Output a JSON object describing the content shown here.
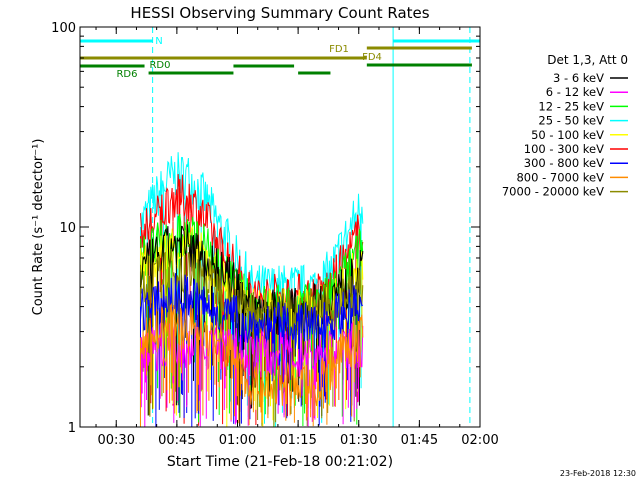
{
  "chart_data": {
    "type": "line",
    "title": "HESSI Observing Summary Count Rates",
    "xlabel": "Start Time (21-Feb-18 00:21:02)",
    "ylabel": "Count Rate (s⁻¹ detector⁻¹)",
    "x_axis": {
      "start": "00:21:02",
      "end": "02:00",
      "unit": "time",
      "ticks": [
        "00:30",
        "00:45",
        "01:00",
        "01:15",
        "01:30",
        "01:45",
        "02:00"
      ]
    },
    "y_axis": {
      "scale": "log",
      "ylim": [
        1,
        100
      ],
      "ticks": [
        "1",
        "10",
        "100"
      ]
    },
    "legend": {
      "title": "Det 1,3, Att 0",
      "position": "right",
      "entries": [
        {
          "label": "3 - 6 keV",
          "color": "#000000"
        },
        {
          "label": "6 - 12 keV",
          "color": "#ff00ff"
        },
        {
          "label": "12 - 25 keV",
          "color": "#00ff00"
        },
        {
          "label": "25 - 50 keV",
          "color": "#00ffff"
        },
        {
          "label": "50 - 100 keV",
          "color": "#ffff00"
        },
        {
          "label": "100 - 300 keV",
          "color": "#ff0000"
        },
        {
          "label": "300 - 800 keV",
          "color": "#0000ff"
        },
        {
          "label": "800 - 7000 keV",
          "color": "#ff8c00"
        },
        {
          "label": "7000 - 20000 keV",
          "color": "#8b8b00"
        }
      ]
    },
    "flags": [
      {
        "label": "N",
        "color": "#00ffff",
        "segments": [
          [
            "00:21:02",
            "00:39:00"
          ],
          [
            "01:38:30",
            "02:00"
          ]
        ]
      },
      {
        "label": "FD1",
        "color": "#8b8b00",
        "segments": [
          [
            "00:21:02",
            "01:32:00"
          ]
        ]
      },
      {
        "label": "FD4",
        "color": "#8b8b00",
        "segments": [
          [
            "01:32:00",
            "01:58:00"
          ]
        ]
      },
      {
        "label": "RD0",
        "color": "#008000",
        "segments": [
          [
            "00:21:02",
            "00:37:00"
          ],
          [
            "00:59:00",
            "01:14:00"
          ],
          [
            "01:32:00",
            "01:58:00"
          ]
        ]
      },
      {
        "label": "RD6",
        "color": "#008000",
        "segments": [
          [
            "00:38:00",
            "00:59:00"
          ],
          [
            "01:15:00",
            "01:23:00"
          ]
        ]
      }
    ],
    "night_markers": [
      {
        "time": "00:21:02",
        "style": "solid"
      },
      {
        "time": "00:39:00",
        "style": "dashed"
      },
      {
        "time": "01:38:30",
        "style": "solid"
      },
      {
        "time": "01:57:30",
        "style": "dashed"
      }
    ],
    "series": [
      {
        "name": "25 - 50 keV",
        "color": "#00ffff",
        "time_range": [
          "00:36:00",
          "01:31:00"
        ],
        "values": [
          10,
          14,
          18,
          18,
          14,
          10,
          7,
          5,
          5,
          5,
          5,
          5,
          6,
          9,
          13
        ]
      },
      {
        "name": "100 - 300 keV",
        "color": "#ff0000",
        "time_range": [
          "00:36:00",
          "01:31:00"
        ],
        "values": [
          9,
          11,
          14,
          14,
          11,
          8,
          6,
          4.5,
          4.5,
          4.5,
          4.5,
          4.5,
          5,
          7,
          10
        ]
      },
      {
        "name": "12 - 25 keV",
        "color": "#00ff00",
        "time_range": [
          "00:36:00",
          "01:31:00"
        ],
        "values": [
          7,
          8,
          9,
          9,
          8,
          6,
          5,
          4,
          4,
          4,
          4,
          4,
          4.5,
          6,
          8
        ]
      },
      {
        "name": "50 - 100 keV",
        "color": "#ffff00",
        "time_range": [
          "00:36:00",
          "01:31:00"
        ],
        "values": [
          6,
          7,
          8,
          8,
          7,
          5.5,
          4.5,
          3.8,
          3.8,
          3.8,
          3.8,
          3.8,
          4.2,
          5,
          7
        ]
      },
      {
        "name": "3 - 6 keV",
        "color": "#000000",
        "time_range": [
          "00:36:00",
          "01:31:00"
        ],
        "values": [
          6,
          7,
          8,
          8,
          7,
          6,
          5,
          4,
          3.8,
          3.8,
          3.8,
          4,
          4.5,
          5,
          6
        ]
      },
      {
        "name": "7000 - 20000 keV",
        "color": "#8b8b00",
        "time_range": [
          "00:36:00",
          "01:31:00"
        ],
        "values": [
          5,
          5.5,
          6,
          6,
          5.5,
          5,
          4.2,
          3.8,
          3.8,
          3.8,
          3.8,
          3.8,
          4,
          4.5,
          5
        ]
      },
      {
        "name": "300 - 800 keV",
        "color": "#0000ff",
        "time_range": [
          "00:36:00",
          "01:31:00"
        ],
        "values": [
          4,
          4,
          4.5,
          4.5,
          4,
          3.8,
          3.5,
          3.2,
          3.2,
          3.2,
          3.2,
          3.2,
          3.5,
          3.8,
          4
        ]
      },
      {
        "name": "6 - 12 keV",
        "color": "#ff00ff",
        "time_range": [
          "00:36:00",
          "01:31:00"
        ],
        "values": [
          2.5,
          2.5,
          2.6,
          2.6,
          2.6,
          2.5,
          2.4,
          2.3,
          2.3,
          2.3,
          2.3,
          2.3,
          2.4,
          2.5,
          2.6
        ]
      },
      {
        "name": "800 - 7000 keV",
        "color": "#ff8c00",
        "time_range": [
          "00:36:00",
          "01:31:00"
        ],
        "values": [
          2.8,
          3,
          3.2,
          3.2,
          3,
          2.6,
          2.2,
          1.6,
          1.6,
          1.6,
          1.6,
          1.6,
          2,
          2.5,
          2.8
        ]
      }
    ],
    "footer_date": "23-Feb-2018 12:30"
  }
}
